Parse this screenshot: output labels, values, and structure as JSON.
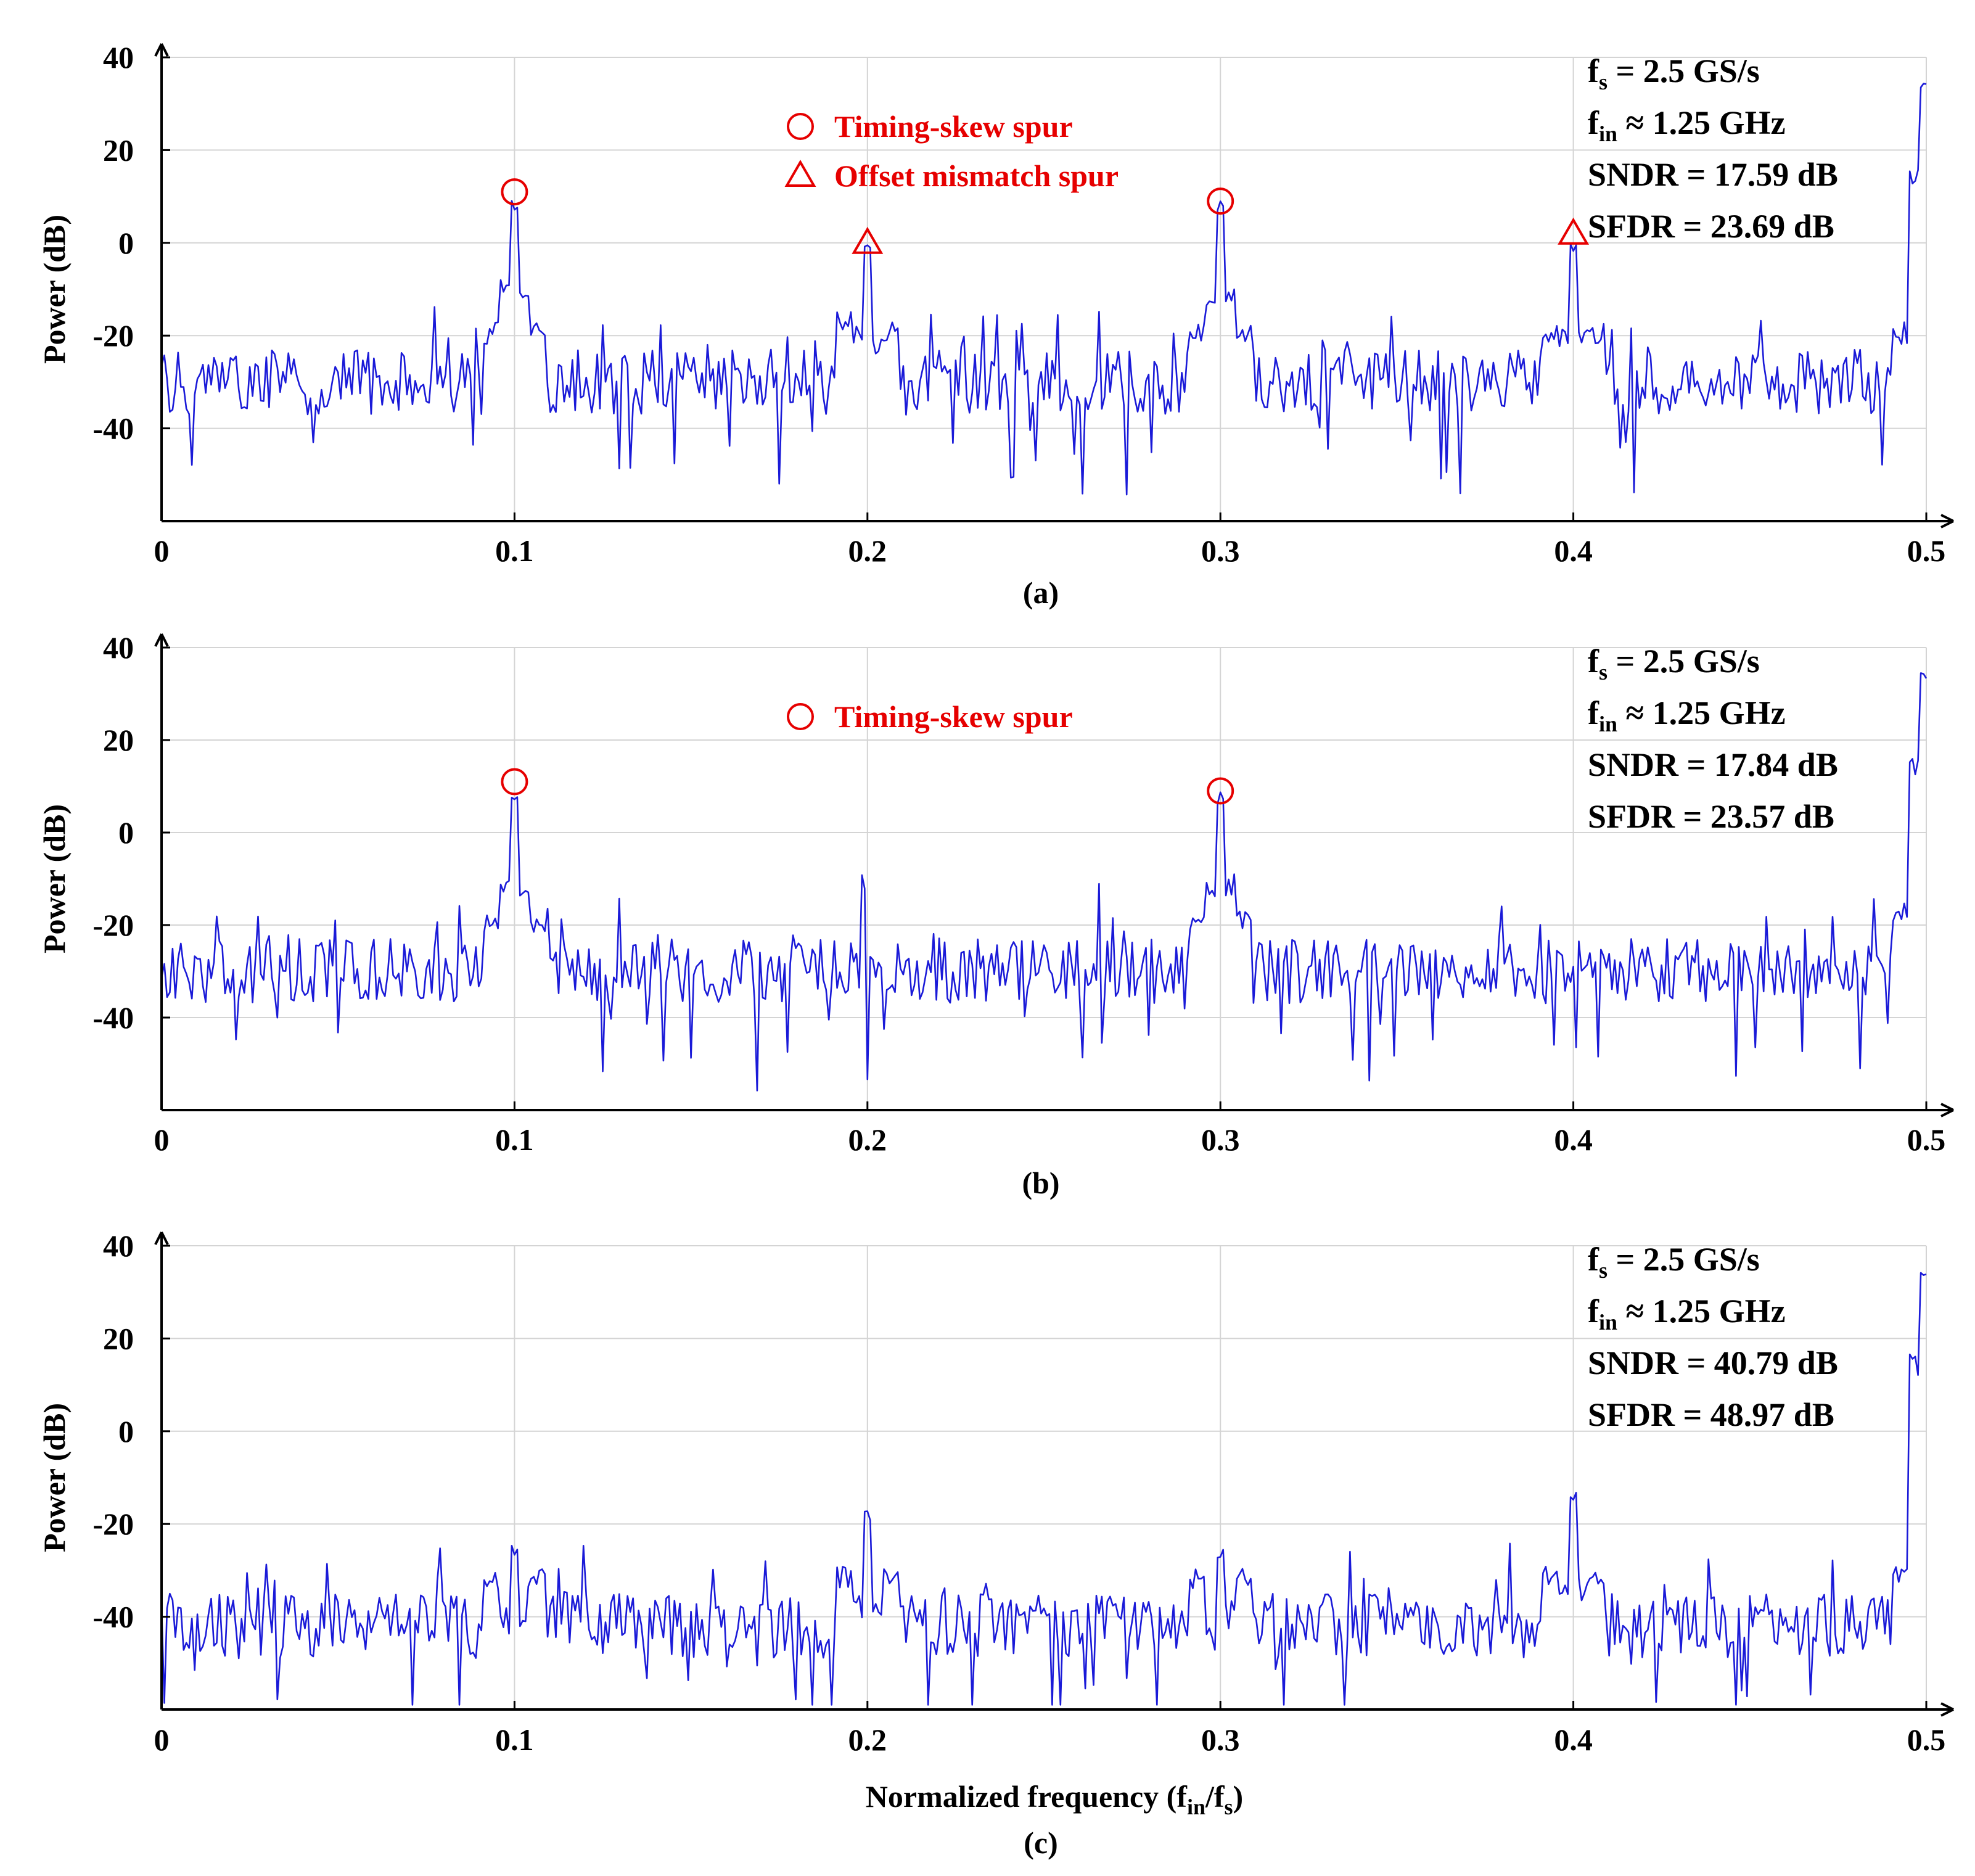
{
  "figure": {
    "xlabel_main": "Normalized frequency (f",
    "xlabel_sub1": "in",
    "xlabel_mid": "/f",
    "xlabel_sub2": "s",
    "xlabel_end": ")"
  },
  "colors": {
    "trace": "#1a1ad8",
    "marker": "#e60000",
    "grid": "#d4d4d4",
    "axis": "#000000"
  },
  "chart_data": [
    {
      "type": "line",
      "panel": "(a)",
      "xlim": [
        0,
        0.5
      ],
      "ylim": [
        -60,
        40
      ],
      "xticks": [
        "0",
        "0.1",
        "0.2",
        "0.3",
        "0.4",
        "0.5"
      ],
      "yticks": [
        "40",
        "20",
        "0",
        "-20",
        "-40"
      ],
      "ylabel": "Power (dB)",
      "grid": true,
      "noise_floor_db": -30,
      "peaks": [
        {
          "x": 0.1,
          "y": 10
        },
        {
          "x": 0.2,
          "y": 0
        },
        {
          "x": 0.3,
          "y": 9
        },
        {
          "x": 0.4,
          "y": 1
        },
        {
          "x": 0.4995,
          "y": 36
        }
      ],
      "info": [
        {
          "base": "f",
          "sub": "s",
          "text": " = 2.5 GS/s"
        },
        {
          "base": "f",
          "sub": "in",
          "text": " ≈  1.25 GHz"
        },
        {
          "base": "",
          "sub": "",
          "text": "SNDR = 17.59 dB"
        },
        {
          "base": "",
          "sub": "",
          "text": "SFDR = 23.69 dB"
        }
      ],
      "legend": [
        {
          "marker": "circle",
          "label": "Timing-skew spur"
        },
        {
          "marker": "triangle",
          "label": "Offset mismatch spur"
        }
      ],
      "markers": [
        {
          "type": "circle",
          "x": 0.1,
          "y": 11
        },
        {
          "type": "triangle",
          "x": 0.2,
          "y": 0
        },
        {
          "type": "circle",
          "x": 0.3,
          "y": 9
        },
        {
          "type": "triangle",
          "x": 0.4,
          "y": 2
        }
      ]
    },
    {
      "type": "line",
      "panel": "(b)",
      "xlim": [
        0,
        0.5
      ],
      "ylim": [
        -60,
        40
      ],
      "xticks": [
        "0",
        "0.1",
        "0.2",
        "0.3",
        "0.4",
        "0.5"
      ],
      "yticks": [
        "40",
        "20",
        "0",
        "-20",
        "-40"
      ],
      "ylabel": "Power (dB)",
      "grid": true,
      "noise_floor_db": -30,
      "peaks": [
        {
          "x": 0.1,
          "y": 10
        },
        {
          "x": 0.3,
          "y": 9
        },
        {
          "x": 0.4995,
          "y": 36
        }
      ],
      "info": [
        {
          "base": "f",
          "sub": "s",
          "text": " = 2.5 GS/s"
        },
        {
          "base": "f",
          "sub": "in",
          "text": " ≈  1.25 GHz"
        },
        {
          "base": "",
          "sub": "",
          "text": "SNDR = 17.84 dB"
        },
        {
          "base": "",
          "sub": "",
          "text": "SFDR = 23.57 dB"
        }
      ],
      "legend": [
        {
          "marker": "circle",
          "label": "Timing-skew spur"
        }
      ],
      "markers": [
        {
          "type": "circle",
          "x": 0.1,
          "y": 11
        },
        {
          "type": "circle",
          "x": 0.3,
          "y": 9
        }
      ]
    },
    {
      "type": "line",
      "panel": "(c)",
      "xlim": [
        0,
        0.5
      ],
      "ylim": [
        -60,
        40
      ],
      "xticks": [
        "0",
        "0.1",
        "0.2",
        "0.3",
        "0.4",
        "0.5"
      ],
      "yticks": [
        "40",
        "20",
        "0",
        "-20",
        "-40"
      ],
      "ylabel": "Power (dB)",
      "grid": true,
      "noise_floor_db": -42,
      "peaks": [
        {
          "x": 0.1,
          "y": -24
        },
        {
          "x": 0.2,
          "y": -17
        },
        {
          "x": 0.3,
          "y": -25
        },
        {
          "x": 0.4,
          "y": -13
        },
        {
          "x": 0.4995,
          "y": 36
        }
      ],
      "info": [
        {
          "base": "f",
          "sub": "s",
          "text": " = 2.5 GS/s"
        },
        {
          "base": "f",
          "sub": "in",
          "text": " ≈  1.25 GHz"
        },
        {
          "base": "",
          "sub": "",
          "text": "SNDR = 40.79 dB"
        },
        {
          "base": "",
          "sub": "",
          "text": "SFDR = 48.97 dB"
        }
      ],
      "legend": [],
      "markers": []
    }
  ]
}
